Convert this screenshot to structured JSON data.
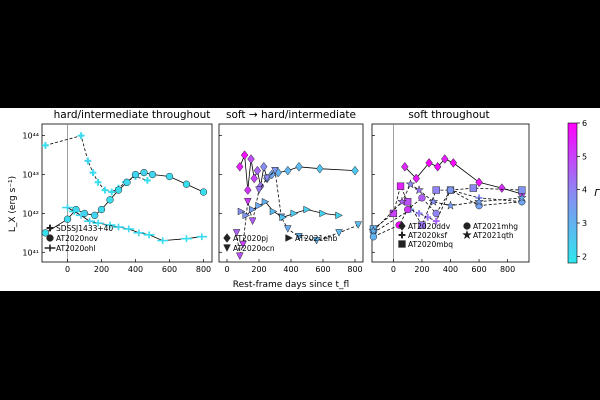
{
  "figure": {
    "ylabel": "L_X (erg s⁻¹)",
    "xlabel": "Rest-frame days since t_fl",
    "colorbar": {
      "label": "Γ",
      "min": 1.8,
      "max": 6,
      "ticks": [
        2,
        3,
        4,
        5,
        6
      ],
      "low_color": "#2ee8ee",
      "mid_color": "#8a8af2",
      "high_color": "#ff00ff"
    }
  },
  "chart_data": [
    {
      "type": "scatter",
      "title": "hard/intermediate throughout",
      "xlim": [
        -150,
        850
      ],
      "ylim_log10": [
        40.75,
        44.3
      ],
      "xticks": [
        0,
        200,
        400,
        600,
        800
      ],
      "yticks": [
        {
          "v": 41,
          "label": "10⁴¹"
        },
        {
          "v": 42,
          "label": "10⁴²"
        },
        {
          "v": 43,
          "label": "10⁴³"
        },
        {
          "v": 44,
          "label": "10⁴⁴"
        }
      ],
      "tfl_line": 0,
      "legend": [
        "SDSSJ1433+40",
        "AT2020nov",
        "AT2020ohl"
      ],
      "series": [
        {
          "name": "SDSSJ1433+40",
          "marker": "plus",
          "style": "dashed",
          "x": [
            -130,
            80,
            120,
            150,
            180,
            220,
            260,
            300,
            340,
            400,
            470
          ],
          "logL": [
            43.75,
            44.0,
            43.35,
            43.05,
            42.8,
            42.6,
            42.55,
            42.65,
            42.8,
            42.95,
            42.85
          ],
          "gamma": [
            2.0,
            2.1,
            2.2,
            2.1,
            2.0,
            2.0,
            2.1,
            2.1,
            2.2,
            2.1,
            2.0
          ]
        },
        {
          "name": "AT2020nov",
          "marker": "circle",
          "style": "solid",
          "x": [
            -130,
            0,
            50,
            100,
            160,
            200,
            250,
            300,
            350,
            400,
            450,
            500,
            600,
            700,
            800
          ],
          "logL": [
            41.5,
            41.85,
            42.1,
            42.0,
            41.95,
            42.1,
            42.35,
            42.6,
            42.8,
            43.0,
            43.05,
            43.0,
            42.95,
            42.75,
            42.55
          ],
          "gamma": [
            2.0,
            2.1,
            2.2,
            2.3,
            2.2,
            2.1,
            2.0,
            2.1,
            2.1,
            2.2,
            2.3,
            2.2,
            2.1,
            2.0,
            2.0
          ]
        },
        {
          "name": "AT2020ohl",
          "marker": "errbar",
          "style": "solid",
          "x": [
            0,
            40,
            80,
            130,
            180,
            250,
            300,
            360,
            420,
            480,
            560,
            700,
            790
          ],
          "logL": [
            42.15,
            42.05,
            41.95,
            41.8,
            41.75,
            41.7,
            41.65,
            41.6,
            41.5,
            41.45,
            41.3,
            41.35,
            41.4
          ],
          "gamma": [
            2.2,
            2.1,
            2.3,
            2.2,
            2.1,
            2.0,
            2.2,
            2.1,
            2.2,
            2.0,
            2.1,
            2.0,
            2.1
          ]
        }
      ]
    },
    {
      "type": "scatter",
      "title": "soft → hard/intermediate",
      "xlim": [
        -50,
        850
      ],
      "ylim_log10": [
        40.75,
        44.3
      ],
      "xticks": [
        0,
        200,
        400,
        600,
        800
      ],
      "legend": [
        "AT2020pj",
        "AT2020ocn",
        "AT2021ehb"
      ],
      "series": [
        {
          "name": "AT2020pj",
          "marker": "diamond",
          "style": "solid",
          "x": [
            80,
            110,
            130,
            150,
            170,
            190,
            210,
            230,
            250,
            280,
            320,
            380,
            450,
            580,
            800
          ],
          "logL": [
            43.2,
            43.5,
            42.6,
            43.4,
            42.9,
            43.1,
            42.7,
            43.2,
            42.9,
            43.0,
            43.05,
            43.1,
            43.2,
            43.15,
            43.1
          ],
          "gamma": [
            5.5,
            5.8,
            5.2,
            4.8,
            5.0,
            4.5,
            4.2,
            3.8,
            3.5,
            3.2,
            3.0,
            2.9,
            2.8,
            2.6,
            2.5
          ]
        },
        {
          "name": "AT2020ocn",
          "marker": "downtri",
          "style": "dashed",
          "x": [
            60,
            80,
            100,
            130,
            160,
            200,
            250,
            300,
            340,
            380,
            450,
            560,
            700,
            820
          ],
          "logL": [
            41.5,
            40.9,
            41.2,
            42.3,
            41.8,
            42.6,
            42.9,
            43.1,
            41.9,
            41.6,
            41.4,
            41.3,
            41.5,
            41.7
          ],
          "gamma": [
            4.5,
            4.8,
            5.0,
            5.2,
            4.6,
            4.2,
            3.9,
            3.6,
            3.4,
            3.2,
            3.0,
            2.9,
            2.8,
            2.8
          ]
        },
        {
          "name": "AT2021ehb",
          "marker": "righttri",
          "style": "solid",
          "x": [
            90,
            120,
            160,
            200,
            240,
            290,
            350,
            420,
            500,
            600,
            700
          ],
          "logL": [
            42.05,
            41.95,
            42.1,
            42.2,
            42.3,
            42.05,
            41.9,
            42.0,
            42.1,
            42.0,
            41.95
          ],
          "gamma": [
            3.8,
            3.6,
            3.4,
            3.2,
            3.0,
            2.8,
            2.6,
            2.5,
            2.4,
            2.3,
            2.3
          ]
        }
      ]
    },
    {
      "type": "scatter",
      "title": "soft throughout",
      "xlim": [
        -150,
        950
      ],
      "ylim_log10": [
        40.75,
        44.3
      ],
      "xticks": [
        0,
        200,
        400,
        600,
        800
      ],
      "tfl_line": 0,
      "legend": [
        "AT2020ddv",
        "AT2020ksf",
        "AT2020mbq",
        "AT2021mhg",
        "AT2021qth"
      ],
      "series": [
        {
          "name": "AT2020ddv",
          "marker": "diamond",
          "style": "solid",
          "x": [
            80,
            160,
            250,
            310,
            360,
            420,
            600,
            760,
            900
          ],
          "logL": [
            43.2,
            42.9,
            43.3,
            43.2,
            43.4,
            43.3,
            42.8,
            42.65,
            42.5
          ],
          "gamma": [
            5.4,
            5.6,
            6.0,
            5.8,
            5.5,
            5.9,
            5.7,
            5.3,
            5.0
          ]
        },
        {
          "name": "AT2020ksf",
          "marker": "plus",
          "style": "dashed",
          "x": [
            -140,
            120,
            180,
            240,
            300,
            400,
            600,
            900
          ],
          "logL": [
            41.5,
            42.1,
            42.0,
            41.9,
            41.8,
            42.6,
            42.4,
            42.3
          ],
          "gamma": [
            3.0,
            3.5,
            4.0,
            4.2,
            4.5,
            4.0,
            3.8,
            3.5
          ]
        },
        {
          "name": "AT2020mbq",
          "marker": "square",
          "style": "dashed",
          "x": [
            -140,
            0,
            50,
            100,
            200,
            300,
            400,
            560,
            900
          ],
          "logL": [
            41.6,
            42.0,
            42.7,
            42.3,
            41.7,
            42.6,
            42.6,
            42.65,
            42.6
          ],
          "gamma": [
            3.0,
            5.0,
            5.5,
            4.8,
            4.2,
            4.0,
            3.8,
            3.9,
            3.7
          ]
        },
        {
          "name": "AT2021mhg",
          "marker": "circle",
          "style": "dashed",
          "x": [
            -140,
            40,
            100,
            200,
            300,
            400,
            600,
            900
          ],
          "logL": [
            41.4,
            41.7,
            42.1,
            42.4,
            42.0,
            42.6,
            42.2,
            42.3
          ],
          "gamma": [
            3.0,
            5.8,
            5.2,
            4.6,
            4.0,
            3.6,
            3.4,
            3.3
          ]
        },
        {
          "name": "AT2021qth",
          "marker": "star",
          "style": "dashed",
          "x": [
            -140,
            60,
            120,
            180,
            280,
            400,
            600,
            900
          ],
          "logL": [
            41.55,
            42.3,
            42.75,
            42.6,
            42.3,
            42.2,
            42.3,
            42.4
          ],
          "gamma": [
            3.0,
            4.5,
            4.0,
            4.2,
            3.8,
            3.5,
            3.4,
            3.3
          ]
        }
      ]
    }
  ]
}
